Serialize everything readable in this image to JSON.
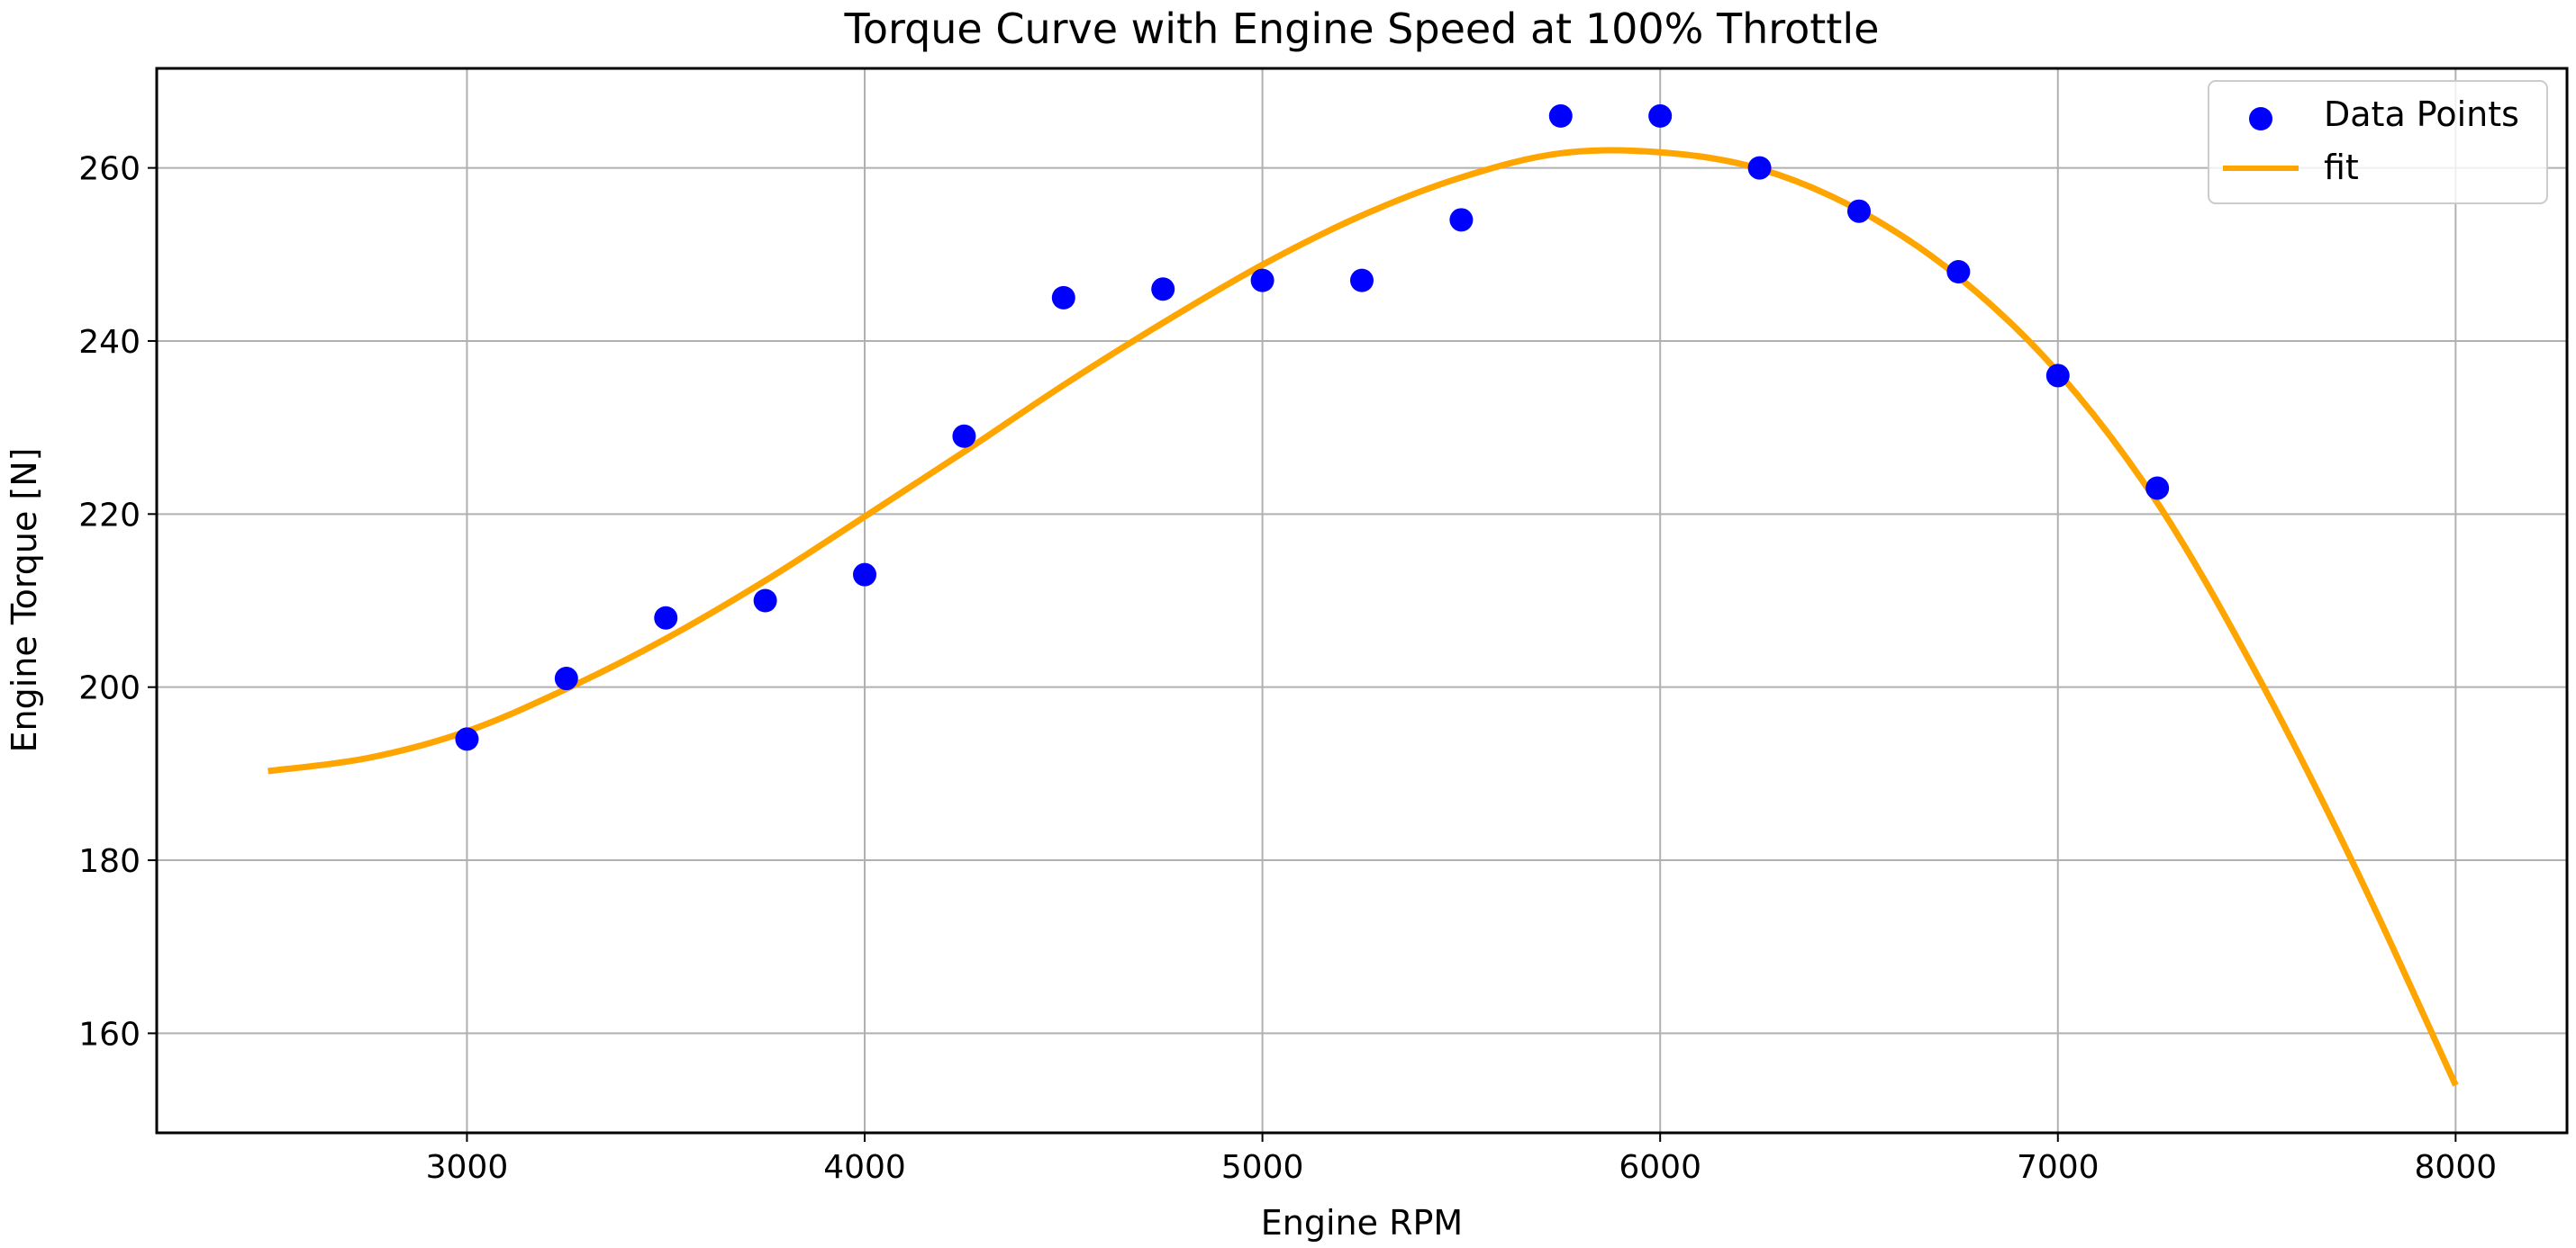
{
  "chart_data": {
    "type": "scatter",
    "title": "Torque Curve with Engine Speed at 100% Throttle",
    "xlabel": "Engine RPM",
    "ylabel": "Engine Torque [N]",
    "xlim": [
      2220,
      8280
    ],
    "ylim": [
      148.5,
      271.5
    ],
    "xticks": [
      3000,
      4000,
      5000,
      6000,
      7000,
      8000
    ],
    "yticks": [
      160,
      180,
      200,
      220,
      240,
      260
    ],
    "grid": true,
    "legend_position": "top-right",
    "series": [
      {
        "name": "Data Points",
        "kind": "scatter",
        "color": "#0000ff",
        "x": [
          3000,
          3250,
          3500,
          3750,
          4000,
          4250,
          4500,
          4750,
          5000,
          5250,
          5500,
          5750,
          6000,
          6250,
          6500,
          6750,
          7000,
          7250
        ],
        "y": [
          194,
          201,
          208,
          210,
          213,
          229,
          245,
          246,
          247,
          247,
          254,
          266,
          266,
          260,
          255,
          248,
          236,
          223
        ]
      },
      {
        "name": "fit",
        "kind": "line",
        "color": "#ffa500",
        "x": [
          2500,
          2750,
          3000,
          3250,
          3500,
          3750,
          4000,
          4250,
          4500,
          4750,
          5000,
          5250,
          5500,
          5750,
          6000,
          6250,
          6500,
          6750,
          7000,
          7250,
          7500,
          7750,
          8000
        ],
        "y": [
          190.3,
          191.8,
          194.9,
          199.8,
          205.6,
          212.3,
          219.7,
          227.2,
          234.9,
          242.1,
          248.8,
          254.5,
          258.9,
          261.7,
          261.8,
          259.9,
          255.1,
          247.4,
          236.4,
          221.3,
          201.5,
          178.9,
          154.0
        ]
      }
    ]
  }
}
